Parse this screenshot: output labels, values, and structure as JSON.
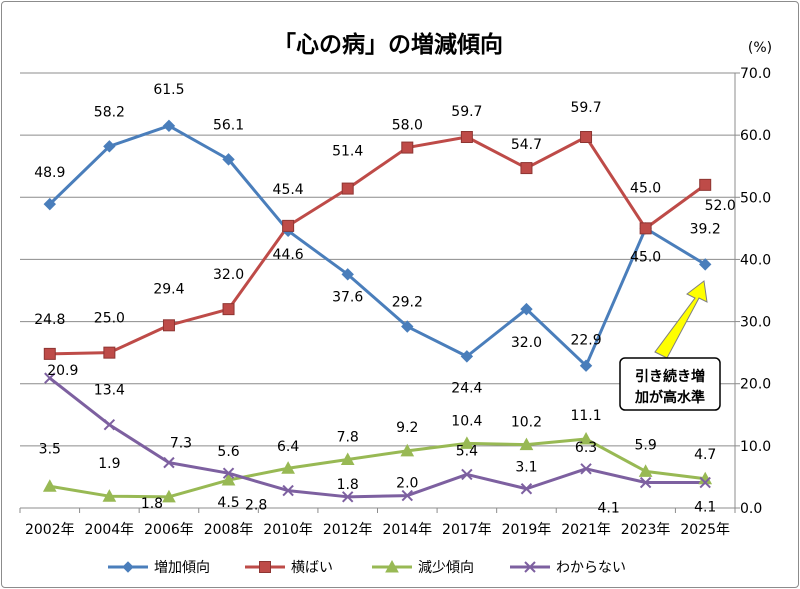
{
  "chart_data": {
    "type": "line",
    "title": "「心の病」の増減傾向",
    "unit": "(%)",
    "categories": [
      "2002年",
      "2004年",
      "2006年",
      "2008年",
      "2010年",
      "2012年",
      "2014年",
      "2017年",
      "2019年",
      "2021年",
      "2023年",
      "2025年"
    ],
    "ylim": [
      0,
      70
    ],
    "yticks": [
      "0.0",
      "10.0",
      "20.0",
      "30.0",
      "40.0",
      "50.0",
      "60.0",
      "70.0"
    ],
    "grid": true,
    "legend_position": "bottom",
    "series": [
      {
        "name": "増加傾向",
        "color": "#4a7ebb",
        "marker": "diamond",
        "values": [
          48.9,
          58.2,
          61.5,
          56.1,
          44.6,
          37.6,
          29.2,
          24.4,
          32.0,
          22.9,
          45.0,
          39.2
        ],
        "labels": [
          "48.9",
          "58.2",
          "61.5",
          "56.1",
          "44.6",
          "37.6",
          "29.2",
          "24.4",
          "32.0",
          "22.9",
          "45.0",
          "39.2"
        ]
      },
      {
        "name": "横ばい",
        "color": "#be4b48",
        "marker": "square",
        "values": [
          24.8,
          25.0,
          29.4,
          32.0,
          45.4,
          51.4,
          58.0,
          59.7,
          54.7,
          59.7,
          45.0,
          52.0
        ],
        "labels": [
          "24.8",
          "25.0",
          "29.4",
          "32.0",
          "45.4",
          "51.4",
          "58.0",
          "59.7",
          "54.7",
          "59.7",
          "45.0",
          "52.0"
        ]
      },
      {
        "name": "減少傾向",
        "color": "#98b954",
        "marker": "triangle",
        "values": [
          3.5,
          1.9,
          1.8,
          4.5,
          6.4,
          7.8,
          9.2,
          10.4,
          10.2,
          11.1,
          5.9,
          4.7
        ],
        "labels": [
          "3.5",
          "1.9",
          "1.8",
          "4.5",
          "6.4",
          "7.8",
          "9.2",
          "10.4",
          "10.2",
          "11.1",
          "5.9",
          "4.7"
        ]
      },
      {
        "name": "わからない",
        "color": "#7d60a0",
        "marker": "x",
        "values": [
          20.9,
          13.4,
          7.3,
          5.6,
          2.8,
          1.8,
          2.0,
          5.4,
          3.1,
          6.3,
          4.1,
          4.1
        ],
        "labels": [
          "20.9",
          "13.4",
          "7.3",
          "5.6",
          "2.8",
          "1.8",
          "2.0",
          "5.4",
          "3.1",
          "6.3",
          "4.1",
          "4.1"
        ]
      }
    ],
    "annotation": {
      "lines": [
        "引き続き増",
        "加が高水準"
      ],
      "arrow_color": "#ffff00"
    }
  }
}
